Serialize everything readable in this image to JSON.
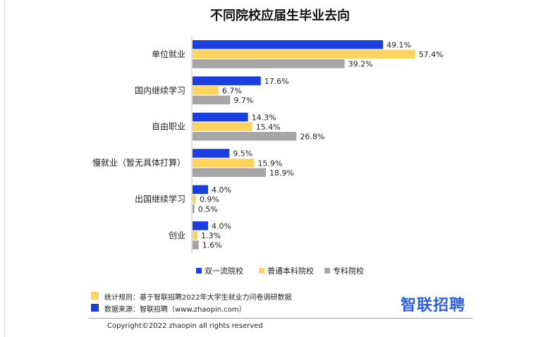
{
  "chart_data": {
    "type": "bar",
    "orientation": "horizontal",
    "title": "不同院校应届生毕业去向",
    "categories": [
      "单位就业",
      "国内继续学习",
      "自由职业",
      "慢就业（暂无具体打算）",
      "出国继续学习",
      "创业"
    ],
    "series": [
      {
        "name": "双一流院校",
        "color": "#1a3ee0",
        "values": [
          49.1,
          17.6,
          14.3,
          9.5,
          4.0,
          4.0
        ],
        "labels": [
          "49.1%",
          "17.6%",
          "14.3%",
          "9.5%",
          "4.0%",
          "4.0%"
        ]
      },
      {
        "name": "普通本科院校",
        "color": "#fcd45e",
        "values": [
          57.4,
          6.7,
          15.4,
          15.9,
          0.9,
          1.3
        ],
        "labels": [
          "57.4%",
          "6.7%",
          "15.4%",
          "15.9%",
          "0.9%",
          "1.3%"
        ]
      },
      {
        "name": "专科院校",
        "color": "#a6a6a6",
        "values": [
          39.2,
          9.7,
          26.8,
          18.9,
          0.5,
          1.6
        ],
        "labels": [
          "39.2%",
          "9.7%",
          "26.8%",
          "18.9%",
          "0.5%",
          "1.6%"
        ]
      }
    ],
    "xlim": [
      0,
      60
    ],
    "grid": false,
    "legend_position": "bottom"
  },
  "footer": {
    "stat_rule": "统计规则：基于智联招聘2022年大学生就业力问卷调研数据",
    "stat_rule_color": "#fcd45e",
    "data_source": "数据来源：智联招聘（www.zhaopin.com）",
    "data_source_color": "#1a3ee0",
    "brand": "智联招聘",
    "copyright": "Copyright©2022 zhaopin all rights reserved"
  }
}
